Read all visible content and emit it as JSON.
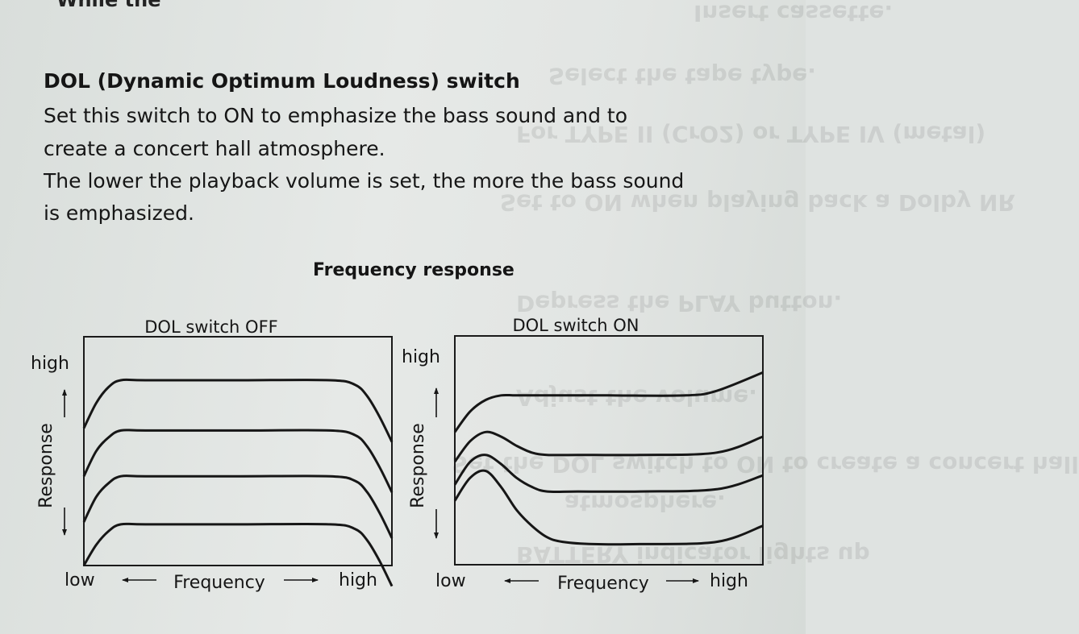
{
  "top_fragment": "While the",
  "section": {
    "heading": "DOL (Dynamic Optimum Loudness) switch",
    "lines": [
      "Set this switch to ON to emphasize the bass sound and to",
      "create a concert hall atmosphere.",
      "The lower the playback volume is set, the more the bass sound",
      "is emphasized."
    ]
  },
  "figure_title": "Frequency response",
  "ghost_text": [
    "Insert cassette.",
    "Select the tape type.",
    "For TYPE II (CrO2) or TYPE IV (metal)",
    "Set to ON when playing back a Dolby NR",
    "Depress the PLAY button.",
    "Adjust the volume.",
    "Set the DOL switch to ON to create a concert hall",
    "atmosphere.",
    "BATTERY indicator lights up"
  ],
  "chart_data": [
    {
      "type": "line",
      "title": "DOL switch OFF",
      "xlabel": "Frequency",
      "ylabel": "Response",
      "x_tick_labels": [
        "low",
        "high"
      ],
      "y_tick_labels": [
        "high"
      ],
      "x_range": [
        0,
        100
      ],
      "y_range": [
        0,
        100
      ],
      "grid": false,
      "series": [
        {
          "x": [
            0,
            4,
            8,
            12,
            20,
            50,
            80,
            88,
            92,
            96,
            100
          ],
          "y": [
            60,
            71,
            78,
            81,
            81,
            81,
            81,
            79,
            74,
            65,
            54
          ]
        },
        {
          "x": [
            0,
            4,
            8,
            12,
            20,
            50,
            80,
            88,
            92,
            96,
            100
          ],
          "y": [
            39,
            50,
            56,
            59,
            59,
            59,
            59,
            57,
            52,
            43,
            32
          ]
        },
        {
          "x": [
            0,
            4,
            8,
            12,
            20,
            50,
            80,
            88,
            92,
            96,
            100
          ],
          "y": [
            19,
            30,
            36,
            39,
            39,
            39,
            39,
            37,
            32,
            23,
            12
          ]
        },
        {
          "x": [
            0,
            4,
            8,
            12,
            20,
            50,
            80,
            88,
            92,
            96,
            100
          ],
          "y": [
            0,
            9,
            15,
            18,
            18,
            18,
            18,
            16,
            11,
            2,
            -9
          ]
        }
      ]
    },
    {
      "type": "line",
      "title": "DOL switch ON",
      "xlabel": "Frequency",
      "ylabel": "Response",
      "x_tick_labels": [
        "low",
        "high"
      ],
      "y_tick_labels": [
        "high"
      ],
      "x_range": [
        0,
        100
      ],
      "y_range": [
        0,
        100
      ],
      "grid": false,
      "series": [
        {
          "x": [
            0,
            5,
            10,
            15,
            20,
            30,
            50,
            75,
            85,
            100
          ],
          "y": [
            58,
            67,
            72,
            74,
            74,
            74,
            74,
            74,
            76,
            84
          ]
        },
        {
          "x": [
            0,
            5,
            10,
            15,
            20,
            25,
            30,
            40,
            60,
            85,
            100
          ],
          "y": [
            45,
            54,
            58,
            56,
            52,
            49,
            48,
            48,
            48,
            49,
            56
          ]
        },
        {
          "x": [
            0,
            5,
            10,
            15,
            20,
            25,
            30,
            40,
            60,
            85,
            100
          ],
          "y": [
            35,
            45,
            48,
            44,
            38,
            34,
            32,
            32,
            32,
            33,
            39
          ]
        },
        {
          "x": [
            0,
            5,
            10,
            15,
            20,
            25,
            30,
            35,
            45,
            60,
            85,
            100
          ],
          "y": [
            28,
            38,
            41,
            34,
            24,
            17,
            12,
            10,
            9,
            9,
            10,
            17
          ]
        }
      ]
    }
  ]
}
